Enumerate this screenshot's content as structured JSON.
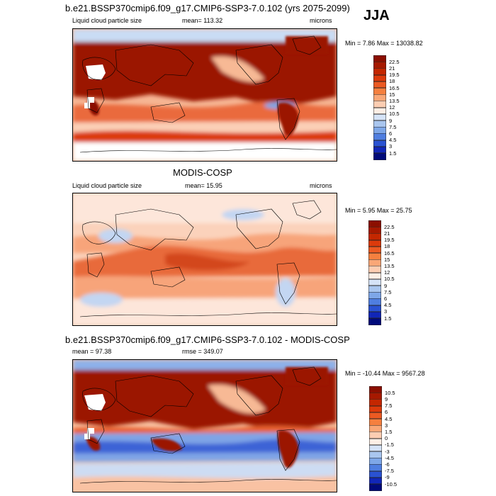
{
  "season": "JJA",
  "panels": [
    {
      "title": "b.e21.BSSP370cmip6.f09_g17.CMIP6-SSP3-7.0.102 (yrs 2075-2099)",
      "left_label": "Liquid cloud particle size",
      "mid_label": "mean= 113.32",
      "right_label": "microns",
      "minmax": "Min =   7.86 Max = 13038.82",
      "legend": {
        "labels": [
          "22.5",
          "21",
          "19.5",
          "18",
          "16.5",
          "15",
          "13.5",
          "12",
          "10.5",
          "9",
          "7.5",
          "6",
          "4.5",
          "3",
          "1.5"
        ],
        "colors": [
          "#8b0f00",
          "#a61900",
          "#c42700",
          "#dc3a0b",
          "#ec5a22",
          "#f5803f",
          "#f9a777",
          "#fccdb2",
          "#fdefe6",
          "#d5e3f7",
          "#a9c6ef",
          "#7ea7e8",
          "#4f7ee0",
          "#2a52d2",
          "#1126b8",
          "#000a7a"
        ]
      }
    },
    {
      "title": "MODIS-COSP",
      "left_label": "Liquid cloud particle size",
      "mid_label": "mean=  15.95",
      "right_label": "microns",
      "minmax": "Min =   5.95 Max =  25.75",
      "legend": {
        "labels": [
          "22.5",
          "21",
          "19.5",
          "18",
          "16.5",
          "15",
          "13.5",
          "12",
          "10.5",
          "9",
          "7.5",
          "6",
          "4.5",
          "3",
          "1.5"
        ],
        "colors": [
          "#8b0f00",
          "#a61900",
          "#c42700",
          "#dc3a0b",
          "#ec5a22",
          "#f5803f",
          "#f9a777",
          "#fccdb2",
          "#fdefe6",
          "#d5e3f7",
          "#a9c6ef",
          "#7ea7e8",
          "#4f7ee0",
          "#2a52d2",
          "#1126b8",
          "#000a7a"
        ]
      }
    },
    {
      "title": "b.e21.BSSP370cmip6.f09_g17.CMIP6-SSP3-7.0.102 - MODIS-COSP",
      "left_label": "mean =  97.38",
      "mid_label": "rmse = 349.07",
      "right_label": "",
      "minmax": "Min = -10.44 Max = 9567.28",
      "legend": {
        "labels": [
          "10.5",
          "9",
          "7.5",
          "6",
          "4.5",
          "3",
          "1.5",
          "0",
          "-1.5",
          "-3",
          "-4.5",
          "-6",
          "-7.5",
          "-9",
          "-10.5"
        ],
        "colors": [
          "#8b0f00",
          "#a61900",
          "#c42700",
          "#dc3a0b",
          "#ec5a22",
          "#f5803f",
          "#f9a777",
          "#fccdb2",
          "#fdefe6",
          "#d5e3f7",
          "#a9c6ef",
          "#7ea7e8",
          "#4f7ee0",
          "#2a52d2",
          "#1126b8",
          "#000a7a"
        ]
      }
    }
  ]
}
